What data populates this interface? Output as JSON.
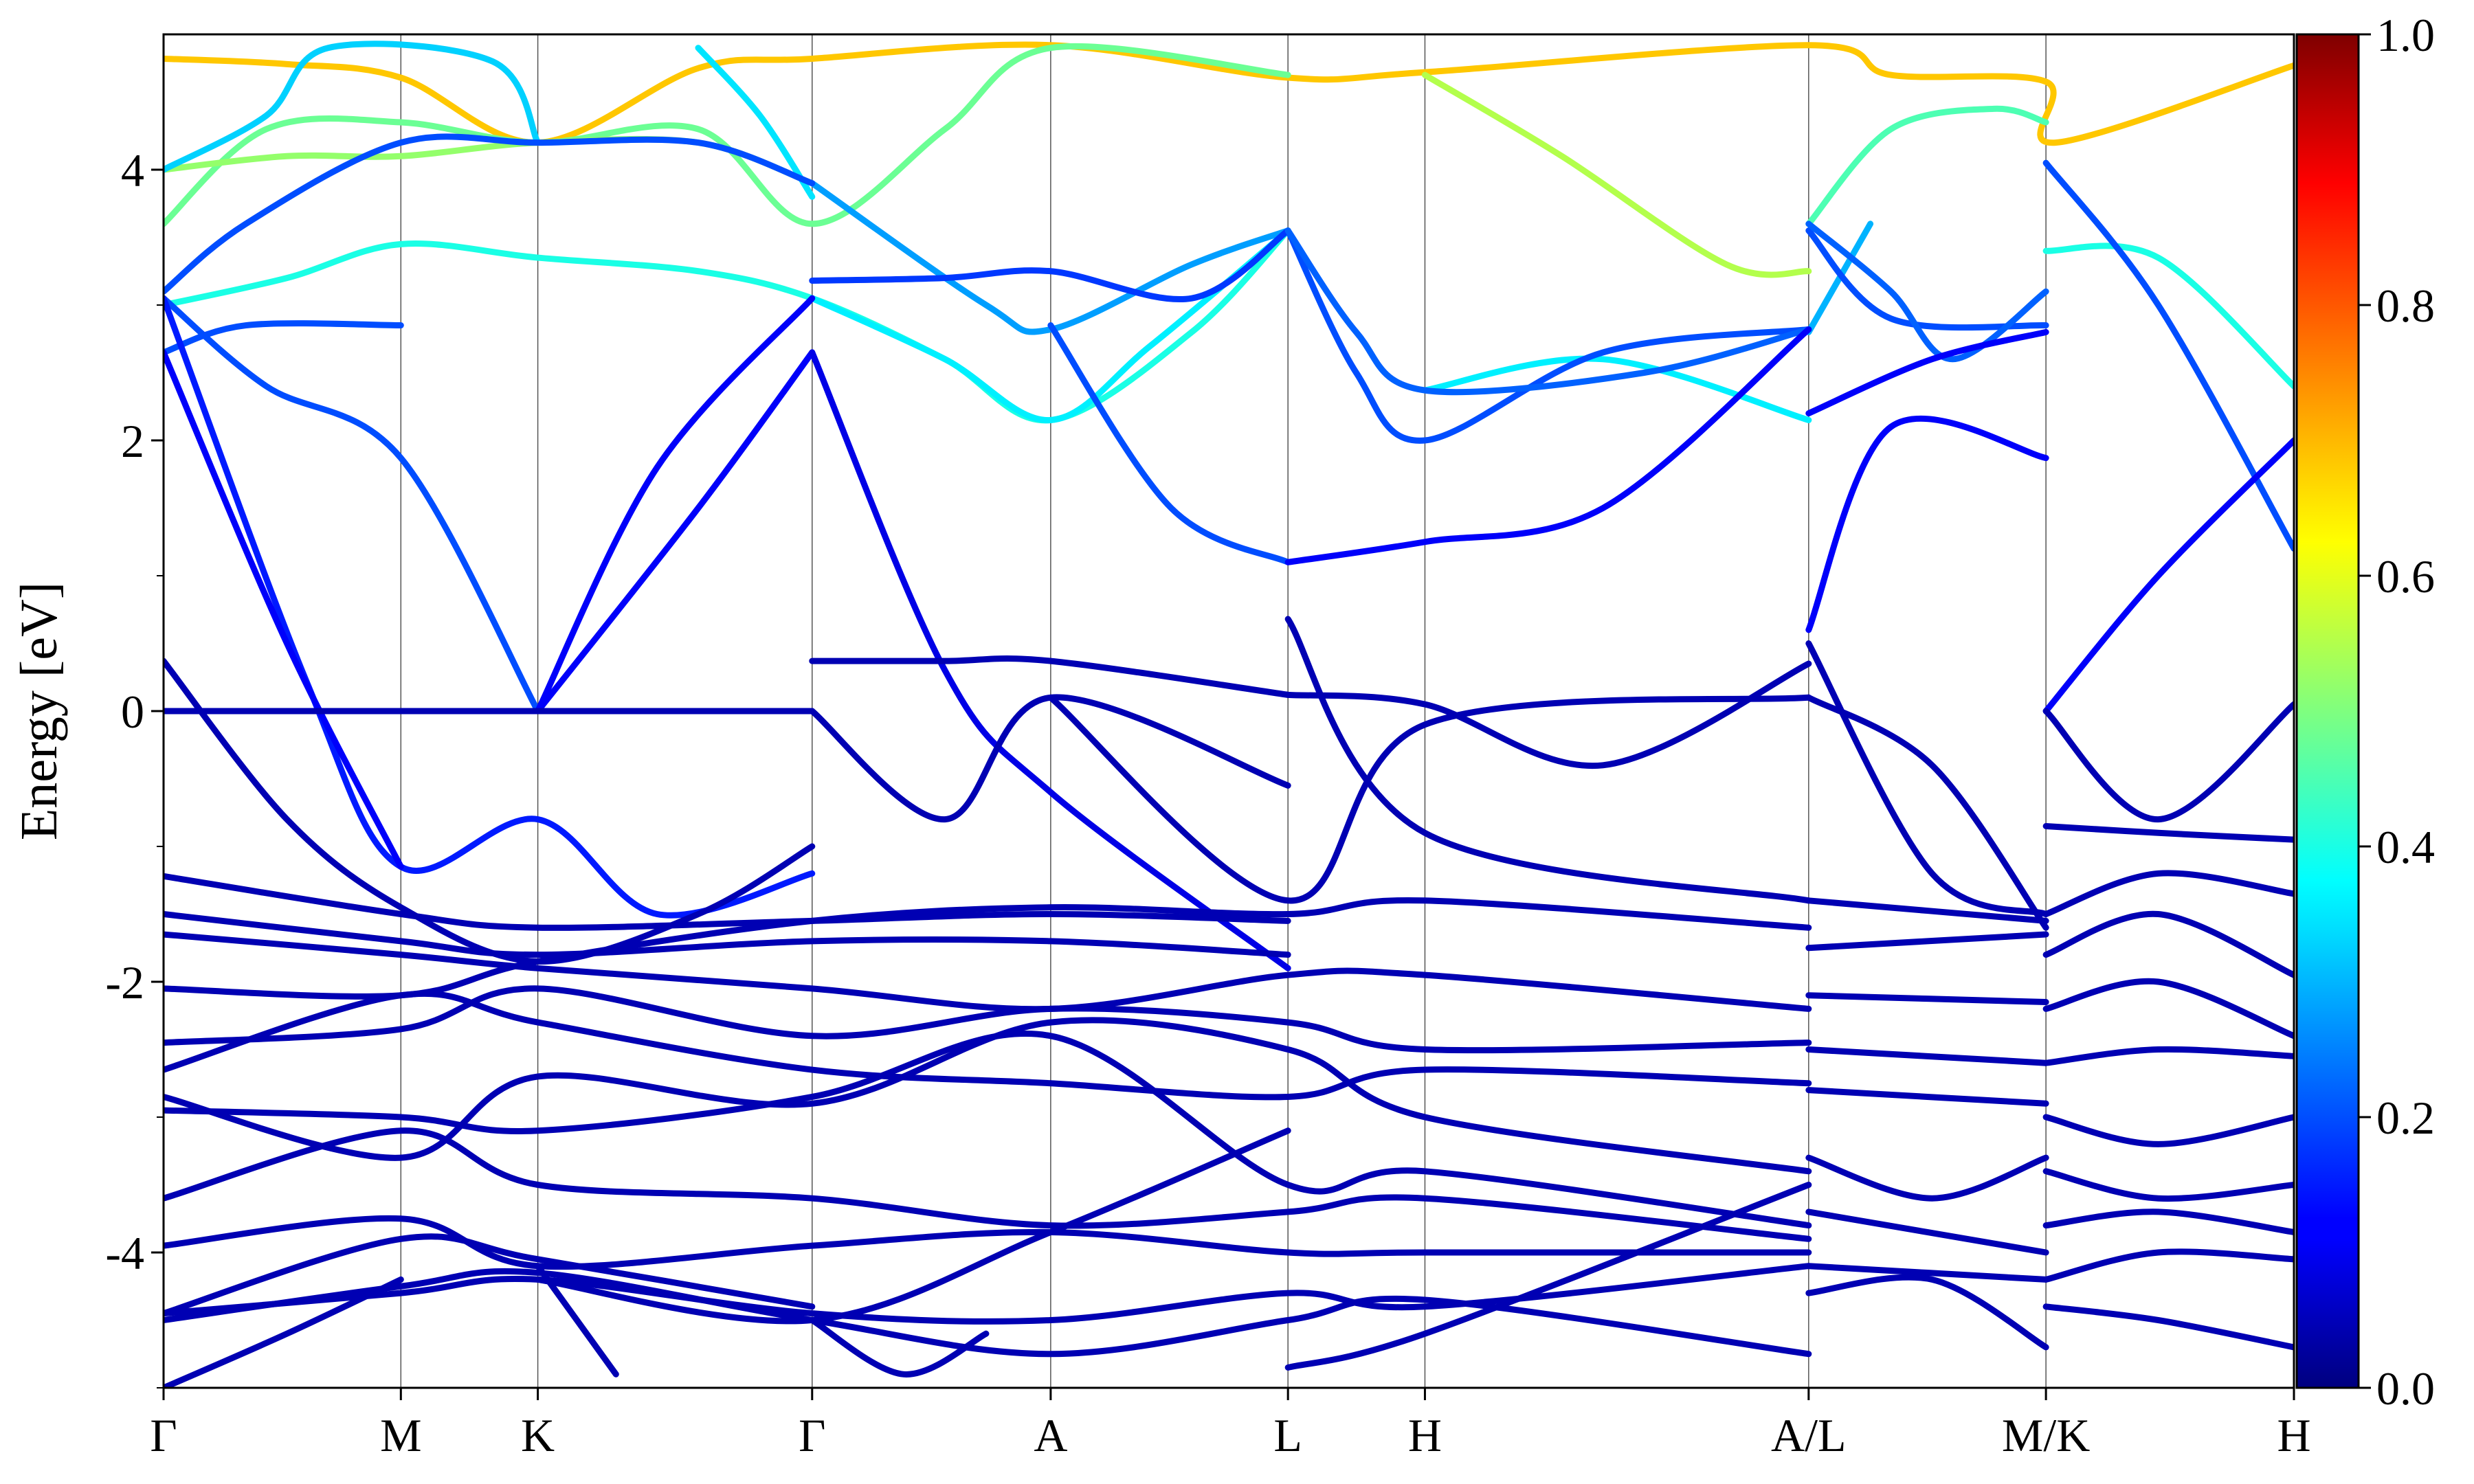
{
  "chart_data": {
    "type": "line",
    "ylabel": "Energy [eV]",
    "ylim": [
      -5,
      5
    ],
    "y_ticks": [
      4,
      2,
      0,
      -2,
      -4
    ],
    "y_tick_labels": [
      "4",
      "2",
      "0",
      "-2",
      "-4"
    ],
    "k_path_labels": [
      "Γ",
      "M",
      "K",
      "Γ",
      "A",
      "L",
      "H",
      "A/L",
      "M/K",
      "H"
    ],
    "k_path_positions": [
      0,
      0.577,
      0.91,
      1.577,
      2.157,
      2.734,
      3.067,
      4.0,
      4.577,
      5.18
    ],
    "colorbar": {
      "min": 0.0,
      "max": 1.0,
      "ticks": [
        0.0,
        0.2,
        0.4,
        0.6,
        0.8,
        1.0
      ],
      "tick_labels": [
        "0.0",
        "0.2",
        "0.4",
        "0.6",
        "0.8",
        "1.0"
      ],
      "colormap": "jet"
    },
    "series": [
      {
        "weight": 0.68,
        "x": [
          0,
          0.3,
          0.577,
          0.91,
          1.3,
          1.577,
          2.157,
          2.734,
          3.067,
          4.0,
          4.2,
          4.577,
          4.6,
          5.18
        ],
        "y": [
          4.82,
          4.78,
          4.68,
          4.2,
          4.75,
          4.82,
          4.92,
          4.68,
          4.72,
          4.92,
          4.7,
          4.65,
          4.2,
          4.77
        ]
      },
      {
        "weight": 0.48,
        "x": [
          0,
          0.25,
          0.577,
          0.91,
          1.3,
          1.577,
          1.9,
          2.157,
          2.734
        ],
        "y": [
          3.6,
          4.3,
          4.35,
          4.2,
          4.3,
          3.6,
          4.3,
          4.9,
          4.7
        ]
      },
      {
        "weight": 0.52,
        "x": [
          0,
          0.3,
          0.577,
          0.91,
          1.3,
          1.577
        ],
        "y": [
          4.0,
          4.1,
          4.1,
          4.2,
          4.2,
          3.9
        ]
      },
      {
        "weight": 0.55,
        "x": [
          3.067,
          3.4,
          3.8,
          4.0
        ],
        "y": [
          4.7,
          4.1,
          3.3,
          3.25
        ]
      },
      {
        "weight": 0.45,
        "x": [
          4.0,
          4.2,
          4.45,
          4.577
        ],
        "y": [
          3.6,
          4.3,
          4.45,
          4.35
        ]
      },
      {
        "weight": 0.4,
        "x": [
          4.577,
          4.85,
          5.18
        ],
        "y": [
          3.4,
          3.35,
          2.4
        ]
      },
      {
        "weight": 0.4,
        "x": [
          0,
          0.3,
          0.577,
          0.91,
          1.3,
          1.577,
          1.9,
          2.157,
          2.5,
          2.734
        ],
        "y": [
          3.0,
          3.2,
          3.45,
          3.35,
          3.25,
          3.05,
          2.6,
          2.15,
          2.8,
          3.55
        ]
      },
      {
        "weight": 0.33,
        "x": [
          0,
          0.25,
          0.4,
          0.8,
          0.91
        ],
        "y": [
          4.0,
          4.4,
          4.9,
          4.8,
          4.2
        ]
      },
      {
        "weight": 0.35,
        "x": [
          1.3,
          1.45,
          1.577
        ],
        "y": [
          4.9,
          4.4,
          3.8
        ]
      },
      {
        "weight": 0.36,
        "x": [
          1.577,
          1.9,
          2.157,
          2.4,
          2.734
        ],
        "y": [
          3.05,
          2.6,
          2.15,
          2.7,
          3.55
        ]
      },
      {
        "weight": 0.36,
        "x": [
          3.067,
          3.5,
          4.0
        ],
        "y": [
          2.37,
          2.6,
          2.15
        ]
      },
      {
        "weight": 0.3,
        "x": [
          4.0,
          4.15
        ],
        "y": [
          2.8,
          3.6
        ]
      },
      {
        "weight": 0.28,
        "x": [
          1.577,
          2.0,
          2.157,
          2.5,
          2.734
        ],
        "y": [
          3.9,
          3.0,
          2.82,
          3.3,
          3.55
        ]
      },
      {
        "weight": 0.2,
        "x": [
          0,
          0.2,
          0.577,
          0.91,
          1.3,
          1.577
        ],
        "y": [
          3.1,
          3.6,
          4.2,
          4.2,
          4.2,
          3.9
        ]
      },
      {
        "weight": 0.2,
        "x": [
          0,
          0.2,
          0.577
        ],
        "y": [
          2.65,
          2.85,
          2.85
        ]
      },
      {
        "weight": 0.2,
        "x": [
          0,
          0.25,
          0.577,
          0.91
        ],
        "y": [
          3.05,
          2.4,
          1.87,
          0.0
        ]
      },
      {
        "weight": 0.18,
        "x": [
          1.577,
          1.9,
          2.157,
          2.5,
          2.734
        ],
        "y": [
          3.18,
          3.2,
          3.25,
          3.05,
          3.55
        ]
      },
      {
        "weight": 0.2,
        "x": [
          2.157,
          2.45,
          2.734
        ],
        "y": [
          2.85,
          1.5,
          1.1
        ]
      },
      {
        "weight": 0.2,
        "x": [
          2.734,
          2.9,
          3.067,
          3.5,
          4.0
        ],
        "y": [
          3.55,
          2.5,
          2.0,
          2.65,
          2.82
        ]
      },
      {
        "weight": 0.22,
        "x": [
          2.734,
          2.9,
          3.067,
          3.6,
          4.0
        ],
        "y": [
          3.55,
          2.8,
          2.37,
          2.5,
          2.82
        ]
      },
      {
        "weight": 0.2,
        "x": [
          4.0,
          4.2,
          4.577
        ],
        "y": [
          3.55,
          2.9,
          2.85
        ]
      },
      {
        "weight": 0.22,
        "x": [
          4.0,
          4.2,
          4.35,
          4.577
        ],
        "y": [
          3.6,
          3.1,
          2.6,
          3.1
        ]
      },
      {
        "weight": 0.2,
        "x": [
          4.577,
          4.85,
          5.18
        ],
        "y": [
          4.05,
          3.0,
          1.2
        ]
      },
      {
        "weight": 0.15,
        "x": [
          0,
          0.35,
          0.577,
          0.91,
          1.2,
          1.577
        ],
        "y": [
          3.05,
          0.2,
          -1.15,
          -0.8,
          -1.5,
          -1.2
        ]
      },
      {
        "weight": 0.12,
        "x": [
          0,
          0.3,
          0.577
        ],
        "y": [
          2.65,
          0.5,
          -1.15
        ]
      },
      {
        "weight": 0.12,
        "x": [
          0.91,
          1.3,
          1.577
        ],
        "y": [
          0.0,
          1.5,
          2.65
        ]
      },
      {
        "weight": 0.12,
        "x": [
          0.91,
          1.2,
          1.577
        ],
        "y": [
          0.0,
          1.8,
          3.05
        ]
      },
      {
        "weight": 0.1,
        "x": [
          1.577,
          1.9,
          2.157,
          2.734
        ],
        "y": [
          2.65,
          0.3,
          -0.6,
          -1.9
        ]
      },
      {
        "weight": 0.12,
        "x": [
          2.734,
          3.067,
          3.5,
          4.0
        ],
        "y": [
          1.1,
          1.25,
          1.5,
          2.82
        ]
      },
      {
        "weight": 0.12,
        "x": [
          4.0,
          4.3,
          4.577
        ],
        "y": [
          2.2,
          2.6,
          2.8
        ]
      },
      {
        "weight": 0.12,
        "x": [
          4.0,
          4.2,
          4.577
        ],
        "y": [
          0.6,
          2.1,
          1.87
        ]
      },
      {
        "weight": 0.12,
        "x": [
          4.577,
          4.85,
          5.18
        ],
        "y": [
          0.0,
          1.0,
          2.0
        ]
      },
      {
        "weight": 0.05,
        "x": [
          0,
          0.577,
          0.91,
          1.577
        ],
        "y": [
          0.0,
          0.0,
          0.0,
          0.0
        ]
      },
      {
        "weight": 0.05,
        "x": [
          0,
          0.3,
          0.577,
          0.91,
          1.3,
          1.577
        ],
        "y": [
          0.37,
          -0.8,
          -1.45,
          -1.85,
          -1.5,
          -1.0
        ]
      },
      {
        "weight": 0.05,
        "x": [
          1.577,
          1.9,
          2.157,
          2.734
        ],
        "y": [
          0.37,
          0.37,
          0.37,
          0.12
        ]
      },
      {
        "weight": 0.05,
        "x": [
          1.577,
          1.9,
          2.157,
          2.734
        ],
        "y": [
          0.0,
          -0.8,
          0.1,
          -0.55
        ]
      },
      {
        "weight": 0.05,
        "x": [
          2.157,
          2.734,
          3.067,
          4.0
        ],
        "y": [
          0.1,
          -1.4,
          -0.1,
          0.1
        ]
      },
      {
        "weight": 0.05,
        "x": [
          2.734,
          3.067,
          3.5,
          4.0
        ],
        "y": [
          0.12,
          0.05,
          -0.4,
          0.35
        ]
      },
      {
        "weight": 0.05,
        "x": [
          2.734,
          3.067,
          4.0
        ],
        "y": [
          0.68,
          -0.9,
          -1.4
        ]
      },
      {
        "weight": 0.05,
        "x": [
          4.0,
          4.3,
          4.577
        ],
        "y": [
          0.5,
          -1.2,
          -1.5
        ]
      },
      {
        "weight": 0.05,
        "x": [
          4.0,
          4.3,
          4.577
        ],
        "y": [
          0.1,
          -0.4,
          -1.6
        ]
      },
      {
        "weight": 0.05,
        "x": [
          4.577,
          4.85,
          5.18
        ],
        "y": [
          0.0,
          -0.8,
          0.05
        ]
      },
      {
        "weight": 0.05,
        "x": [
          0,
          0.577,
          0.91,
          1.577,
          2.157,
          2.734
        ],
        "y": [
          -1.22,
          -1.5,
          -1.6,
          -1.55,
          -1.5,
          -1.55
        ]
      },
      {
        "weight": 0.05,
        "x": [
          0,
          0.577,
          0.91,
          1.577,
          2.157,
          2.734
        ],
        "y": [
          -1.5,
          -1.7,
          -1.8,
          -1.7,
          -1.7,
          -1.8
        ]
      },
      {
        "weight": 0.05,
        "x": [
          0,
          0.577,
          0.91,
          1.577,
          2.157,
          2.734,
          3.067,
          4.0
        ],
        "y": [
          -1.65,
          -1.8,
          -1.9,
          -2.05,
          -2.2,
          -1.95,
          -1.95,
          -2.2
        ]
      },
      {
        "weight": 0.05,
        "x": [
          0,
          0.577,
          0.91,
          1.577,
          2.157,
          2.734,
          3.067,
          4.0
        ],
        "y": [
          -2.05,
          -2.1,
          -1.85,
          -1.55,
          -1.45,
          -1.5,
          -1.4,
          -1.6
        ]
      },
      {
        "weight": 0.05,
        "x": [
          0,
          0.577,
          0.91,
          1.577,
          2.157,
          2.734,
          3.067,
          4.0
        ],
        "y": [
          -2.45,
          -2.35,
          -2.05,
          -2.4,
          -2.2,
          -2.3,
          -2.5,
          -2.45
        ]
      },
      {
        "weight": 0.05,
        "x": [
          0,
          0.577,
          0.91,
          1.577,
          2.157,
          2.734,
          3.067,
          4.0
        ],
        "y": [
          -2.65,
          -2.1,
          -2.3,
          -2.65,
          -2.75,
          -2.85,
          -2.65,
          -2.75
        ]
      },
      {
        "weight": 0.05,
        "x": [
          0,
          0.577,
          0.91,
          1.577,
          2.157,
          2.734,
          3.067,
          4.0
        ],
        "y": [
          -2.85,
          -3.3,
          -2.7,
          -2.9,
          -2.3,
          -2.5,
          -3.0,
          -3.4
        ]
      },
      {
        "weight": 0.05,
        "x": [
          0,
          0.577,
          0.91,
          1.577,
          2.157,
          2.734,
          3.067,
          4.0
        ],
        "y": [
          -2.95,
          -3.0,
          -3.1,
          -2.85,
          -2.4,
          -3.5,
          -3.4,
          -3.8
        ]
      },
      {
        "weight": 0.05,
        "x": [
          0,
          0.577,
          0.91,
          1.577,
          2.157,
          2.734,
          3.067,
          4.0
        ],
        "y": [
          -3.6,
          -3.1,
          -3.5,
          -3.6,
          -3.8,
          -3.7,
          -3.6,
          -3.9
        ]
      },
      {
        "weight": 0.05,
        "x": [
          0,
          0.577,
          0.91,
          1.577,
          2.157,
          2.734,
          3.067,
          4.0
        ],
        "y": [
          -3.95,
          -3.75,
          -4.1,
          -3.95,
          -3.85,
          -4.0,
          -4.0,
          -4.0
        ]
      },
      {
        "weight": 0.05,
        "x": [
          0,
          0.577,
          0.91,
          1.577,
          2.157,
          2.734,
          3.067,
          4.0
        ],
        "y": [
          -4.45,
          -4.3,
          -4.2,
          -4.45,
          -4.5,
          -4.3,
          -4.4,
          -4.1
        ]
      },
      {
        "weight": 0.05,
        "x": [
          0,
          0.577,
          0.91,
          1.577,
          2.157,
          2.734,
          3.067,
          4.0
        ],
        "y": [
          -4.5,
          -4.25,
          -4.15,
          -4.5,
          -4.75,
          -4.5,
          -4.35,
          -4.75
        ]
      },
      {
        "weight": 0.05,
        "x": [
          0,
          0.577,
          0.91,
          1.577
        ],
        "y": [
          -4.45,
          -3.9,
          -4.05,
          -4.4
        ]
      },
      {
        "weight": 0.05,
        "x": [
          0,
          0.3,
          0.577
        ],
        "y": [
          -5.0,
          -4.6,
          -4.2
        ]
      },
      {
        "weight": 0.05,
        "x": [
          1.577,
          1.8,
          2.0
        ],
        "y": [
          -4.5,
          -4.9,
          -4.6
        ]
      },
      {
        "weight": 0.05,
        "x": [
          0.91,
          1.1
        ],
        "y": [
          -4.1,
          -4.9
        ]
      },
      {
        "weight": 0.05,
        "x": [
          0.91,
          1.577,
          2.157,
          2.734
        ],
        "y": [
          -4.2,
          -4.5,
          -3.85,
          -3.1
        ]
      },
      {
        "weight": 0.05,
        "x": [
          2.734,
          3.067,
          4.0
        ],
        "y": [
          -4.85,
          -4.6,
          -3.5
        ]
      },
      {
        "weight": 0.05,
        "x": [
          4.0,
          4.577
        ],
        "y": [
          -1.4,
          -1.55
        ]
      },
      {
        "weight": 0.05,
        "x": [
          4.0,
          4.577
        ],
        "y": [
          -1.75,
          -1.65
        ]
      },
      {
        "weight": 0.05,
        "x": [
          4.0,
          4.577
        ],
        "y": [
          -2.1,
          -2.15
        ]
      },
      {
        "weight": 0.05,
        "x": [
          4.0,
          4.577
        ],
        "y": [
          -2.5,
          -2.6
        ]
      },
      {
        "weight": 0.05,
        "x": [
          4.0,
          4.577
        ],
        "y": [
          -2.8,
          -2.9
        ]
      },
      {
        "weight": 0.05,
        "x": [
          4.0,
          4.3,
          4.577
        ],
        "y": [
          -3.3,
          -3.6,
          -3.3
        ]
      },
      {
        "weight": 0.05,
        "x": [
          4.0,
          4.577
        ],
        "y": [
          -3.7,
          -4.0
        ]
      },
      {
        "weight": 0.05,
        "x": [
          4.0,
          4.577
        ],
        "y": [
          -4.1,
          -4.2
        ]
      },
      {
        "weight": 0.05,
        "x": [
          4.0,
          4.3,
          4.577
        ],
        "y": [
          -4.3,
          -4.2,
          -4.7
        ]
      },
      {
        "weight": 0.05,
        "x": [
          4.577,
          4.85,
          5.18
        ],
        "y": [
          -0.85,
          -0.9,
          -0.95
        ]
      },
      {
        "weight": 0.05,
        "x": [
          4.577,
          4.85,
          5.18
        ],
        "y": [
          -1.5,
          -1.2,
          -1.35
        ]
      },
      {
        "weight": 0.05,
        "x": [
          4.577,
          4.85,
          5.18
        ],
        "y": [
          -1.8,
          -1.5,
          -1.95
        ]
      },
      {
        "weight": 0.05,
        "x": [
          4.577,
          4.85,
          5.18
        ],
        "y": [
          -2.2,
          -2.0,
          -2.4
        ]
      },
      {
        "weight": 0.05,
        "x": [
          4.577,
          4.85,
          5.18
        ],
        "y": [
          -2.6,
          -2.5,
          -2.55
        ]
      },
      {
        "weight": 0.05,
        "x": [
          4.577,
          4.85,
          5.18
        ],
        "y": [
          -3.0,
          -3.2,
          -3.0
        ]
      },
      {
        "weight": 0.05,
        "x": [
          4.577,
          4.85,
          5.18
        ],
        "y": [
          -3.4,
          -3.6,
          -3.5
        ]
      },
      {
        "weight": 0.05,
        "x": [
          4.577,
          4.85,
          5.18
        ],
        "y": [
          -3.8,
          -3.7,
          -3.85
        ]
      },
      {
        "weight": 0.05,
        "x": [
          4.577,
          4.85,
          5.18
        ],
        "y": [
          -4.2,
          -4.0,
          -4.05
        ]
      },
      {
        "weight": 0.05,
        "x": [
          4.577,
          4.85,
          5.18
        ],
        "y": [
          -4.4,
          -4.5,
          -4.7
        ]
      }
    ]
  }
}
